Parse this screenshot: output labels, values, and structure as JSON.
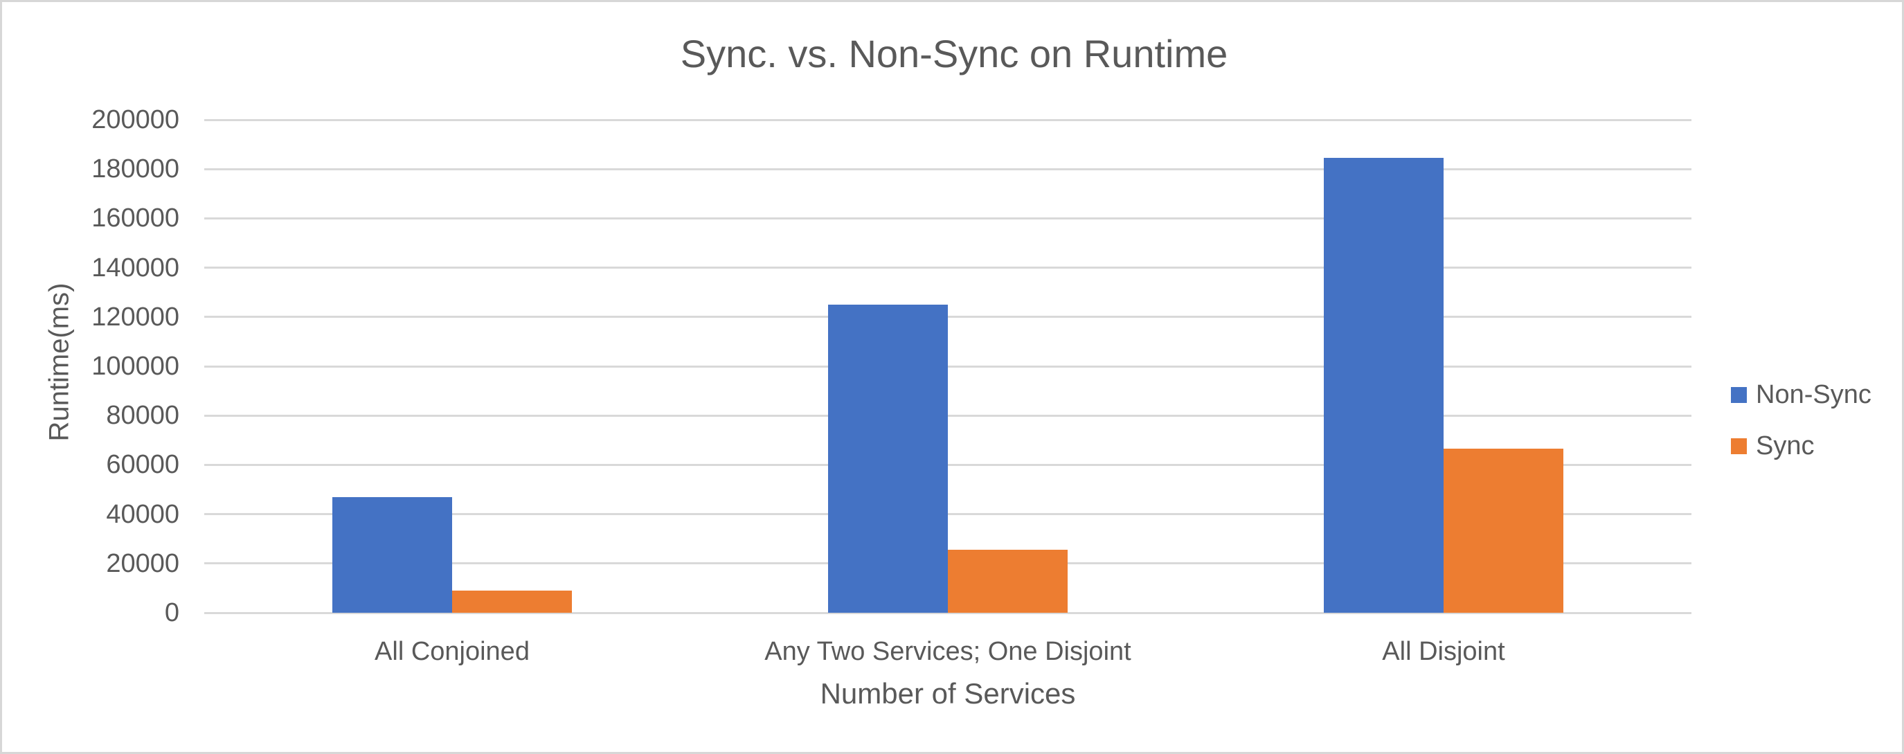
{
  "chart_data": {
    "type": "bar",
    "title": "Sync. vs. Non-Sync on Runtime",
    "xlabel": "Number of Services",
    "ylabel": "Runtime(ms)",
    "categories": [
      "All Conjoined",
      "Any Two Services; One Disjoint",
      "All Disjoint"
    ],
    "series": [
      {
        "name": "Non-Sync",
        "color": "#4472C4",
        "values": [
          47000,
          125000,
          184500
        ]
      },
      {
        "name": "Sync",
        "color": "#ED7D31",
        "values": [
          9000,
          25500,
          66500
        ]
      }
    ],
    "ylim": [
      0,
      200000
    ],
    "ytick_step": 20000,
    "ytick_labels": [
      "0",
      "20000",
      "40000",
      "60000",
      "80000",
      "100000",
      "120000",
      "140000",
      "160000",
      "180000",
      "200000"
    ],
    "grid": "horizontal gridlines on, no vertical axis line",
    "gridline_color": "#d9d9d9",
    "text_color": "#595959",
    "background_color": "#ffffff",
    "frame_border_color": "#d7d7d7",
    "legend_position": "right"
  }
}
